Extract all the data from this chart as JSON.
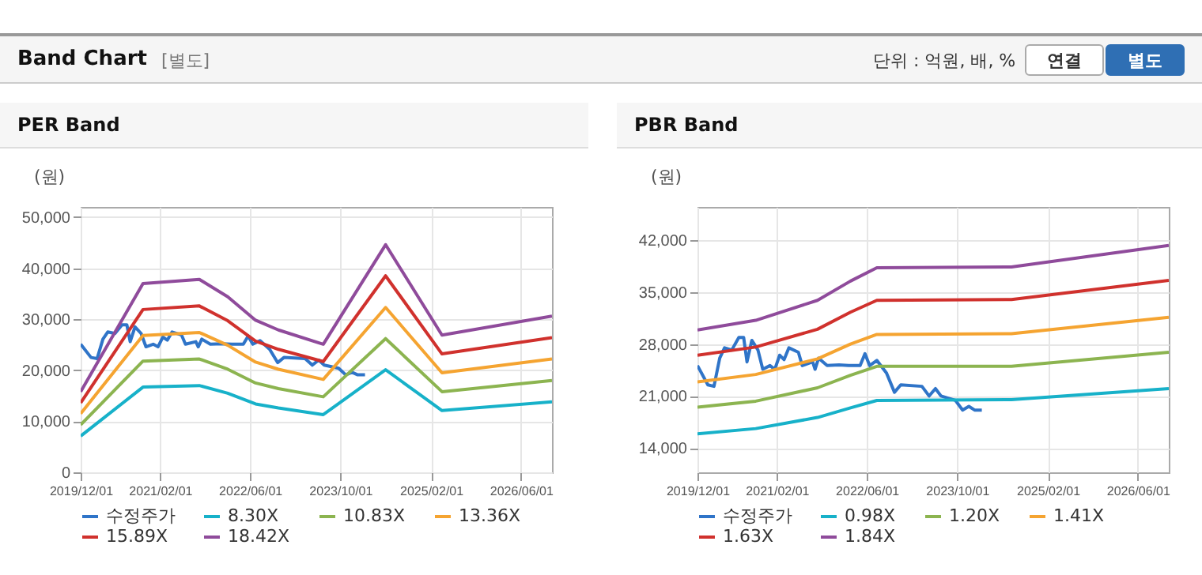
{
  "chart_data": [
    {
      "type": "other",
      "title": "Band Chart",
      "annotations": [
        "[별도]",
        "단위 : 억원, 배, %",
        "연결",
        "별도"
      ]
    },
    {
      "type": "line",
      "title": "PER Band",
      "ylabel": "(원)",
      "grid": true,
      "legend": "bottom",
      "xlim": [
        "2019-12-01",
        "2026-11-15"
      ],
      "xticks": [
        {
          "value": "2019-12-01",
          "label": "2019/12/01"
        },
        {
          "value": "2021-02-01",
          "label": "2021/02/01"
        },
        {
          "value": "2022-06-01",
          "label": "2022/06/01"
        },
        {
          "value": "2023-10-01",
          "label": "2023/10/01"
        },
        {
          "value": "2025-02-01",
          "label": "2025/02/01"
        },
        {
          "value": "2026-06-01",
          "label": "2026/06/01"
        }
      ],
      "ylim": [
        0,
        52000
      ],
      "yticks": [
        {
          "value": 0,
          "label": "0"
        },
        {
          "value": 10000,
          "label": "10,000"
        },
        {
          "value": 20000,
          "label": "20,000"
        },
        {
          "value": 30000,
          "label": "30,000"
        },
        {
          "value": 40000,
          "label": "40,000"
        },
        {
          "value": 50000,
          "label": "50,000"
        }
      ],
      "series": [
        {
          "name": "수정주가",
          "color": "#2f74c8",
          "x": [
            "2019-12-01",
            "2020-01-26",
            "2020-02-28",
            "2020-03-30",
            "2020-04-25",
            "2020-06-03",
            "2020-07-11",
            "2020-08-06",
            "2020-08-24",
            "2020-09-19",
            "2020-10-22",
            "2020-11-17",
            "2020-12-26",
            "2021-01-21",
            "2021-02-16",
            "2021-03-12",
            "2021-04-07",
            "2021-05-28",
            "2021-06-18",
            "2021-08-13",
            "2021-08-26",
            "2021-09-14",
            "2021-10-30",
            "2022-01-02",
            "2022-02-23",
            "2022-04-26",
            "2022-05-22",
            "2022-06-16",
            "2022-07-25",
            "2022-09-15",
            "2022-10-28",
            "2022-12-01",
            "2023-03-25",
            "2023-05-03",
            "2023-06-06",
            "2023-07-06",
            "2023-09-22",
            "2023-10-30",
            "2023-12-03",
            "2024-01-03",
            "2024-02-11"
          ],
          "values": [
            25100,
            22500,
            22300,
            26100,
            27500,
            27200,
            28900,
            28900,
            25600,
            28500,
            27200,
            24600,
            25100,
            24600,
            26500,
            25900,
            27500,
            26900,
            25100,
            25600,
            24600,
            26100,
            25100,
            25200,
            25100,
            25100,
            26700,
            25100,
            25800,
            24100,
            21500,
            22500,
            22300,
            21000,
            22000,
            21000,
            20400,
            19100,
            19600,
            19100,
            19100
          ]
        },
        {
          "name": "8.30X",
          "color": "#17b1c9",
          "x": [
            "2019-12-01",
            "2020-11-01",
            "2021-09-01",
            "2022-02-01",
            "2022-07-01",
            "2022-11-01",
            "2023-07-01",
            "2024-06-01",
            "2025-04-01",
            "2026-11-15"
          ],
          "values": [
            7100,
            16700,
            17000,
            15500,
            13400,
            12600,
            11300,
            20100,
            12100,
            13800
          ]
        },
        {
          "name": "10.83X",
          "color": "#8cb450",
          "x": [
            "2019-12-01",
            "2020-11-01",
            "2021-09-01",
            "2022-02-01",
            "2022-07-01",
            "2022-11-01",
            "2023-07-01",
            "2024-06-01",
            "2025-04-01",
            "2026-11-15"
          ],
          "values": [
            9300,
            21800,
            22200,
            20200,
            17500,
            16400,
            14800,
            26200,
            15800,
            18000
          ]
        },
        {
          "name": "13.36X",
          "color": "#f5a431",
          "x": [
            "2019-12-01",
            "2020-11-01",
            "2021-09-01",
            "2022-02-01",
            "2022-07-01",
            "2022-11-01",
            "2023-07-01",
            "2024-06-01",
            "2025-04-01",
            "2026-11-15"
          ],
          "values": [
            11500,
            26800,
            27400,
            24900,
            21600,
            20200,
            18200,
            32300,
            19500,
            22200
          ]
        },
        {
          "name": "15.89X",
          "color": "#d0312d",
          "x": [
            "2019-12-01",
            "2020-11-01",
            "2021-09-01",
            "2022-02-01",
            "2022-07-01",
            "2022-11-01",
            "2023-07-01",
            "2024-06-01",
            "2025-04-01",
            "2026-11-15"
          ],
          "values": [
            13600,
            31900,
            32600,
            29700,
            25700,
            24100,
            21700,
            38500,
            23200,
            26400
          ]
        },
        {
          "name": "18.42X",
          "color": "#8f4b9b",
          "x": [
            "2019-12-01",
            "2020-11-01",
            "2021-09-01",
            "2022-02-01",
            "2022-07-01",
            "2022-11-01",
            "2023-07-01",
            "2024-06-01",
            "2025-04-01",
            "2026-11-15"
          ],
          "values": [
            15800,
            37000,
            37800,
            34400,
            29800,
            27900,
            25100,
            44600,
            26900,
            30600
          ]
        }
      ]
    },
    {
      "type": "line",
      "title": "PBR Band",
      "ylabel": "(원)",
      "grid": true,
      "legend": "bottom",
      "xlim": [
        "2019-12-01",
        "2026-11-15"
      ],
      "xticks": [
        {
          "value": "2019-12-01",
          "label": "2019/12/01"
        },
        {
          "value": "2021-02-01",
          "label": "2021/02/01"
        },
        {
          "value": "2022-06-01",
          "label": "2022/06/01"
        },
        {
          "value": "2023-10-01",
          "label": "2023/10/01"
        },
        {
          "value": "2025-02-01",
          "label": "2025/02/01"
        },
        {
          "value": "2026-06-01",
          "label": "2026/06/01"
        }
      ],
      "ylim": [
        10700,
        46500
      ],
      "yticks": [
        {
          "value": 14000,
          "label": "14,000"
        },
        {
          "value": 21000,
          "label": "21,000"
        },
        {
          "value": 28000,
          "label": "28,000"
        },
        {
          "value": 35000,
          "label": "35,000"
        },
        {
          "value": 42000,
          "label": "42,000"
        }
      ],
      "series": [
        {
          "name": "수정주가",
          "color": "#2f74c8",
          "x": [
            "2019-12-01",
            "2020-01-26",
            "2020-02-28",
            "2020-03-30",
            "2020-04-25",
            "2020-06-03",
            "2020-07-11",
            "2020-08-06",
            "2020-08-24",
            "2020-09-19",
            "2020-10-22",
            "2020-11-17",
            "2020-12-26",
            "2021-01-21",
            "2021-02-16",
            "2021-03-12",
            "2021-04-07",
            "2021-05-28",
            "2021-06-18",
            "2021-08-13",
            "2021-08-26",
            "2021-09-14",
            "2021-10-30",
            "2022-01-02",
            "2022-02-23",
            "2022-04-26",
            "2022-05-22",
            "2022-06-16",
            "2022-07-25",
            "2022-09-15",
            "2022-10-28",
            "2022-12-01",
            "2023-03-25",
            "2023-05-03",
            "2023-06-06",
            "2023-07-06",
            "2023-09-22",
            "2023-10-30",
            "2023-12-03",
            "2024-01-03",
            "2024-02-11"
          ],
          "values": [
            25100,
            22500,
            22300,
            26100,
            27500,
            27200,
            28900,
            28900,
            25600,
            28500,
            27200,
            24600,
            25100,
            24600,
            26500,
            25900,
            27500,
            26900,
            25100,
            25600,
            24600,
            26100,
            25100,
            25200,
            25100,
            25100,
            26700,
            25100,
            25800,
            24100,
            21500,
            22500,
            22300,
            21000,
            22000,
            21000,
            20400,
            19100,
            19600,
            19100,
            19100
          ]
        },
        {
          "name": "0.98X",
          "color": "#17b1c9",
          "x": [
            "2019-12-01",
            "2020-10-10",
            "2021-09-08",
            "2022-03-05",
            "2022-07-25",
            "2024-07-20",
            "2026-11-15"
          ],
          "values": [
            15900,
            16600,
            18100,
            19400,
            20400,
            20500,
            22000
          ]
        },
        {
          "name": "1.20X",
          "color": "#8cb450",
          "x": [
            "2019-12-01",
            "2020-10-10",
            "2021-09-08",
            "2022-03-05",
            "2022-07-25",
            "2024-07-20",
            "2026-11-15"
          ],
          "values": [
            19500,
            20300,
            22100,
            23800,
            25000,
            25000,
            26900
          ]
        },
        {
          "name": "1.41X",
          "color": "#f5a431",
          "x": [
            "2019-12-01",
            "2020-10-10",
            "2021-09-08",
            "2022-03-05",
            "2022-07-25",
            "2024-07-20",
            "2026-11-15"
          ],
          "values": [
            22900,
            23900,
            26000,
            28000,
            29300,
            29400,
            31600
          ]
        },
        {
          "name": "1.63X",
          "color": "#d0312d",
          "x": [
            "2019-12-01",
            "2020-10-10",
            "2021-09-08",
            "2022-03-05",
            "2022-07-25",
            "2024-07-20",
            "2026-11-15"
          ],
          "values": [
            26500,
            27600,
            30000,
            32300,
            33900,
            34000,
            36600
          ]
        },
        {
          "name": "1.84X",
          "color": "#8f4b9b",
          "x": [
            "2019-12-01",
            "2020-10-10",
            "2021-09-08",
            "2022-03-05",
            "2022-07-25",
            "2024-07-20",
            "2026-11-15"
          ],
          "values": [
            29900,
            31200,
            33900,
            36500,
            38300,
            38400,
            41300
          ]
        }
      ]
    }
  ]
}
